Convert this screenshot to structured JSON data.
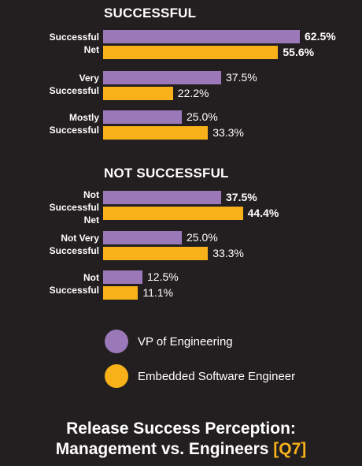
{
  "chart_data": {
    "type": "bar",
    "orientation": "horizontal",
    "title": "Release Success Perception:",
    "subtitle": "Management vs. Engineers",
    "question_tag": "[Q7]",
    "value_unit": "%",
    "xlim": [
      0,
      100
    ],
    "legend_position": "bottom",
    "colors": {
      "vp": "#9b78b8",
      "engineer": "#f9b11a",
      "background": "#231f20"
    },
    "series": [
      {
        "key": "vp",
        "name": "VP of Engineering"
      },
      {
        "key": "engineer",
        "name": "Embedded Software Engineer"
      }
    ],
    "sections": [
      {
        "title": "SUCCESSFUL",
        "categories": [
          {
            "label": "Successful\nNet",
            "values": [
              62.5,
              55.6
            ],
            "value_labels": [
              "62.5%",
              "55.6%"
            ],
            "emphasis": true
          },
          {
            "label": "Very\nSuccessful",
            "values": [
              37.5,
              22.2
            ],
            "value_labels": [
              "37.5%",
              "22.2%"
            ],
            "emphasis": false
          },
          {
            "label": "Mostly\nSuccessful",
            "values": [
              25.0,
              33.3
            ],
            "value_labels": [
              "25.0%",
              "33.3%"
            ],
            "emphasis": false
          }
        ]
      },
      {
        "title": "NOT SUCCESSFUL",
        "categories": [
          {
            "label": "Not\nSuccessful\nNet",
            "values": [
              37.5,
              44.4
            ],
            "value_labels": [
              "37.5%",
              "44.4%"
            ],
            "emphasis": true
          },
          {
            "label": "Not Very\nSuccessful",
            "values": [
              25.0,
              33.3
            ],
            "value_labels": [
              "25.0%",
              "33.3%"
            ],
            "emphasis": false
          },
          {
            "label": "Not\nSuccessful",
            "values": [
              12.5,
              11.1
            ],
            "value_labels": [
              "12.5%",
              "11.1%"
            ],
            "emphasis": false
          }
        ]
      }
    ]
  }
}
